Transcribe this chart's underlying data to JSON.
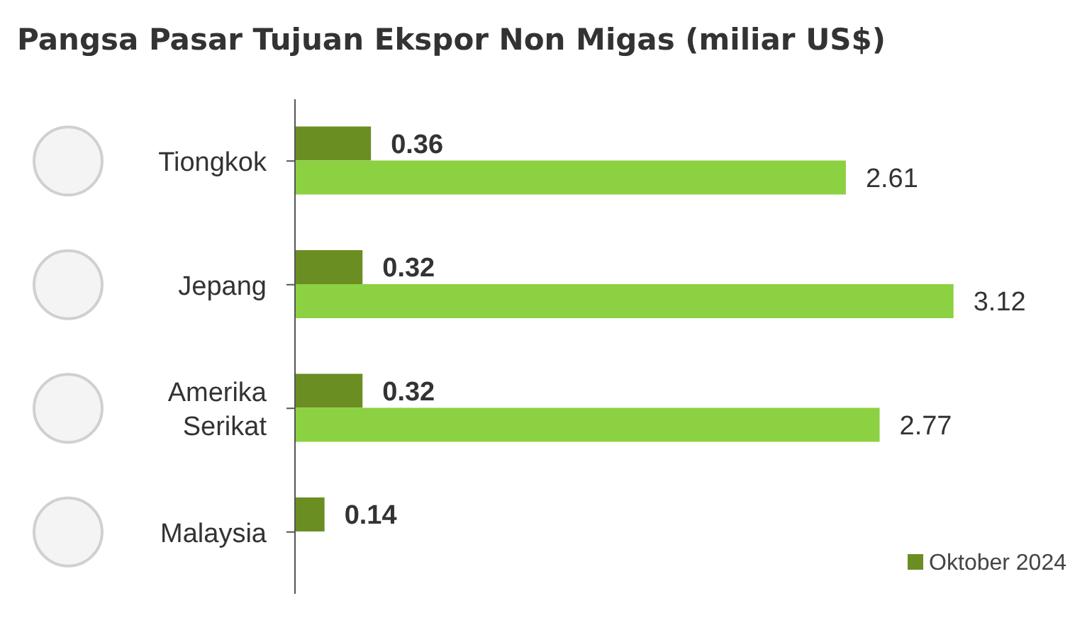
{
  "chart_data": {
    "type": "bar",
    "orientation": "horizontal",
    "title": "Pangsa Pasar Tujuan Ekspor Non Migas (miliar US$)",
    "categories": [
      "Tiongkok",
      "Jepang",
      "Amerika Serikat",
      "Malaysia"
    ],
    "series": [
      {
        "name": "Oktober 2024",
        "color": "#6b8e23",
        "values": [
          0.36,
          0.32,
          0.32,
          0.14
        ]
      },
      {
        "color": "#8cd141",
        "values": [
          2.61,
          3.12,
          2.77,
          null
        ]
      }
    ],
    "tick_labels": "y",
    "data_labels": true,
    "grid": false,
    "legend": "bottom right"
  }
}
